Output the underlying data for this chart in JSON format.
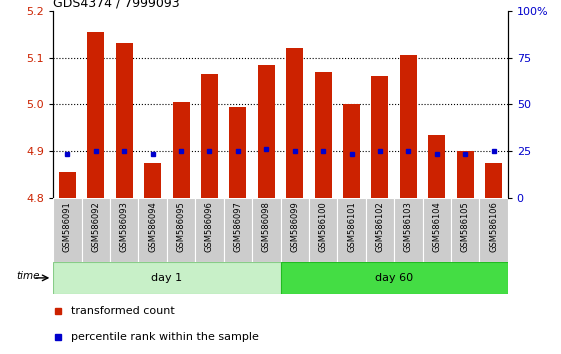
{
  "title": "GDS4374 / 7999093",
  "samples": [
    "GSM586091",
    "GSM586092",
    "GSM586093",
    "GSM586094",
    "GSM586095",
    "GSM586096",
    "GSM586097",
    "GSM586098",
    "GSM586099",
    "GSM586100",
    "GSM586101",
    "GSM586102",
    "GSM586103",
    "GSM586104",
    "GSM586105",
    "GSM586106"
  ],
  "red_values": [
    4.855,
    5.155,
    5.13,
    4.875,
    5.005,
    5.065,
    4.995,
    5.085,
    5.12,
    5.07,
    5.0,
    5.06,
    5.105,
    4.935,
    4.9,
    4.875
  ],
  "blue_values": [
    4.895,
    4.9,
    4.9,
    4.895,
    4.9,
    4.9,
    4.9,
    4.905,
    4.9,
    4.9,
    4.895,
    4.9,
    4.9,
    4.895,
    4.895,
    4.9
  ],
  "bar_base": 4.8,
  "ylim_left": [
    4.8,
    5.2
  ],
  "ylim_right": [
    0,
    100
  ],
  "yticks_left": [
    4.8,
    4.9,
    5.0,
    5.1,
    5.2
  ],
  "yticks_right": [
    0,
    25,
    50,
    75,
    100
  ],
  "ytick_labels_right": [
    "0",
    "25",
    "50",
    "75",
    "100%"
  ],
  "day1_samples": 8,
  "day60_samples": 8,
  "group_labels": [
    "day 1",
    "day 60"
  ],
  "time_label": "time",
  "legend_red": "transformed count",
  "legend_blue": "percentile rank within the sample",
  "red_color": "#cc2200",
  "blue_color": "#0000cc",
  "bar_width": 0.6,
  "label_bg": "#cccccc",
  "group1_bg": "#c8f0c8",
  "group2_bg": "#44dd44",
  "grid_linestyle": ":",
  "grid_linewidth": 0.8
}
